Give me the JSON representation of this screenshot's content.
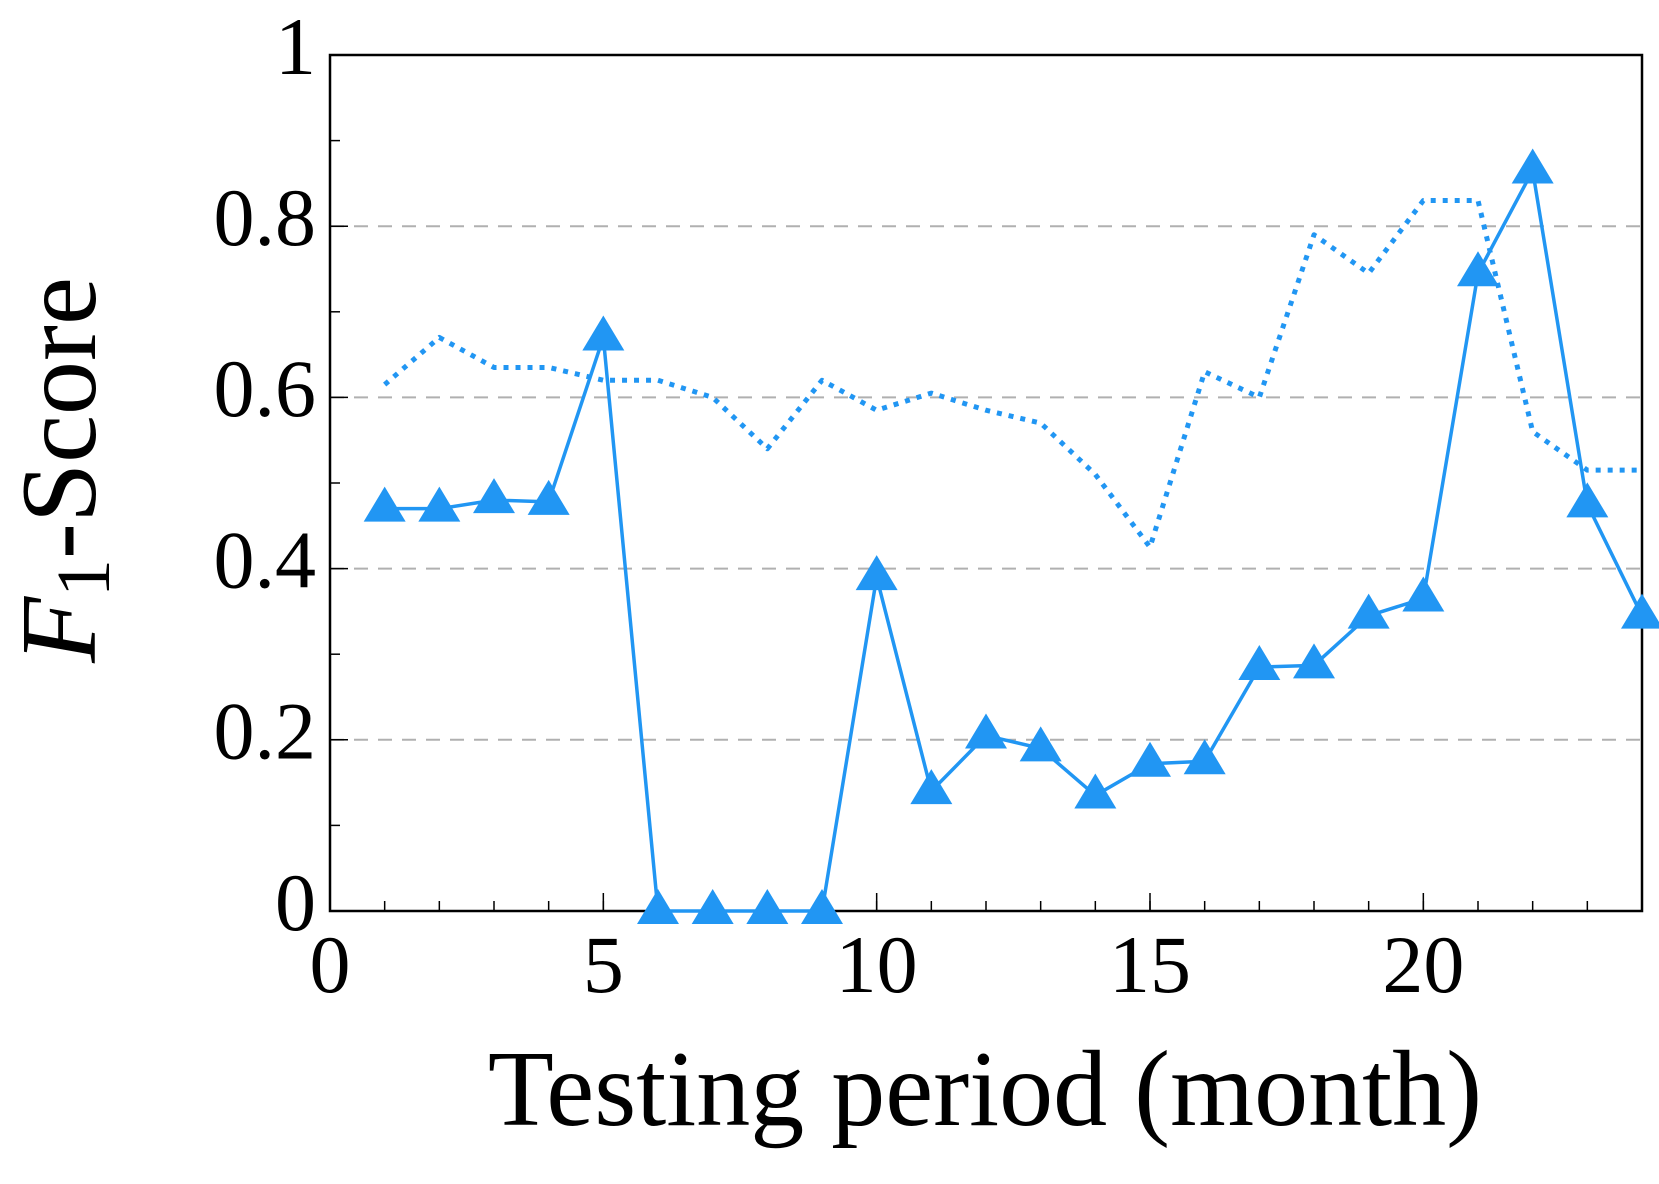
{
  "chart_data": {
    "type": "line",
    "xlabel": "Testing period (month)",
    "ylabel": {
      "main": "F",
      "subscript": "1",
      "rest": "-Score"
    },
    "x": [
      1,
      2,
      3,
      4,
      5,
      6,
      7,
      8,
      9,
      10,
      11,
      12,
      13,
      14,
      15,
      16,
      17,
      18,
      19,
      20,
      21,
      22,
      23,
      24
    ],
    "series": [
      {
        "color": "#2196f3",
        "marker": "triangle",
        "dash": "solid",
        "values": [
          0.47,
          0.47,
          0.48,
          0.478,
          0.67,
          0,
          0,
          0,
          0,
          0.39,
          0.14,
          0.205,
          0.19,
          0.135,
          0.172,
          0.175,
          0.285,
          0.287,
          0.345,
          0.365,
          0.745,
          0.865,
          0.475,
          0.345
        ]
      },
      {
        "color": "#2196f3",
        "marker": "none",
        "dash": "dotted",
        "values": [
          0.615,
          0.67,
          0.635,
          0.635,
          0.62,
          0.62,
          0.6,
          0.54,
          0.62,
          0.585,
          0.605,
          0.585,
          0.57,
          0.51,
          0.425,
          0.63,
          0.6,
          0.79,
          0.745,
          0.83,
          0.83,
          0.56,
          0.515,
          0.515
        ]
      }
    ],
    "xlim": [
      0,
      24
    ],
    "xticks": [
      0,
      5,
      10,
      15,
      20
    ],
    "ylim": [
      0,
      1
    ],
    "yticks": [
      0,
      0.2,
      0.4,
      0.6,
      0.8,
      1
    ],
    "grid": true
  }
}
